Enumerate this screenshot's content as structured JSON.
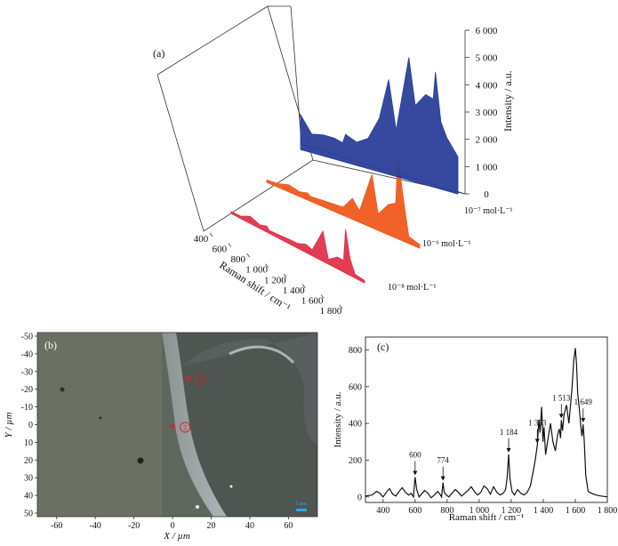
{
  "panels": {
    "a": {
      "label": "(a)"
    },
    "b": {
      "label": "(b)"
    },
    "c": {
      "label": "(c)"
    }
  },
  "colors": {
    "blue": "#2c3f9a",
    "orange": "#ef5a1e",
    "red": "#e0334a",
    "micrograph_bg": "#5f665d",
    "scalebar": "#2aa8e6",
    "marker": "#e02020"
  },
  "chart_data": [
    {
      "panel": "a",
      "type": "line",
      "style": "3d-waterfall",
      "xlabel": "Raman shift / cm⁻¹",
      "zlabel": "Intensity / a.u.",
      "x_ticks": [
        "400",
        "600",
        "800",
        "1 000",
        "1 200",
        "1 400",
        "1 600",
        "1 800"
      ],
      "z_ticks": [
        "0",
        "1 000",
        "2 000",
        "3 000",
        "4 000",
        "5 000",
        "6 000"
      ],
      "xlim": [
        400,
        1800
      ],
      "zlim": [
        0,
        6000
      ],
      "series": [
        {
          "name": "10⁻⁸ mol·L⁻¹",
          "color": "#e0334a",
          "x": [
            400,
            500,
            600,
            700,
            774,
            800,
            900,
            1000,
            1100,
            1184,
            1250,
            1363,
            1420,
            1513,
            1580,
            1600,
            1649,
            1700,
            1800
          ],
          "values": [
            80,
            100,
            300,
            150,
            250,
            120,
            150,
            180,
            200,
            350,
            250,
            1300,
            200,
            500,
            500,
            1900,
            700,
            150,
            100
          ]
        },
        {
          "name": "10⁻⁶ mol·L⁻¹",
          "color": "#ef5a1e",
          "x": [
            400,
            500,
            600,
            700,
            774,
            800,
            900,
            1000,
            1100,
            1184,
            1250,
            1363,
            1420,
            1513,
            1580,
            1600,
            1649,
            1700,
            1800
          ],
          "values": [
            100,
            150,
            300,
            200,
            300,
            200,
            250,
            300,
            350,
            900,
            500,
            2300,
            700,
            1300,
            1500,
            3600,
            1900,
            300,
            150
          ]
        },
        {
          "name": "10⁻⁷ mol·L⁻¹",
          "color": "#2c3f9a",
          "x": [
            400,
            500,
            600,
            700,
            774,
            800,
            900,
            1000,
            1100,
            1184,
            1250,
            1363,
            1420,
            1513,
            1580,
            1600,
            1649,
            1700,
            1800
          ],
          "values": [
            1500,
            800,
            900,
            900,
            800,
            1200,
            1000,
            1300,
            2300,
            4100,
            2000,
            5300,
            3300,
            3900,
            3800,
            5000,
            2900,
            2300,
            1600
          ]
        }
      ]
    },
    {
      "panel": "b",
      "type": "scatter",
      "xlabel": "X / µm",
      "ylabel": "Y / µm",
      "x_ticks": [
        "-60",
        "-40",
        "-20",
        "0",
        "20",
        "40",
        "60"
      ],
      "y_ticks": [
        "-50",
        "-40",
        "-30",
        "-20",
        "-10",
        "0",
        "10",
        "20",
        "30",
        "40",
        "50"
      ],
      "xlim": [
        -70,
        75
      ],
      "ylim": [
        -52,
        52
      ],
      "points": [
        {
          "x": 8,
          "y": -26,
          "label": "1"
        },
        {
          "x": 0,
          "y": 1,
          "label": "2"
        }
      ],
      "scalebar_label": "5 µm"
    },
    {
      "panel": "c",
      "type": "line",
      "xlabel": "Raman shift / cm⁻¹",
      "ylabel": "Intensity / a.u.",
      "xlim": [
        290,
        1800
      ],
      "ylim": [
        -30,
        870
      ],
      "x_ticks": [
        "400",
        "600",
        "800",
        "1 000",
        "1 200",
        "1 400",
        "1 600",
        "1 800"
      ],
      "y_ticks": [
        "0",
        "200",
        "400",
        "600",
        "800"
      ],
      "annotations": [
        {
          "x": 600,
          "y": 108,
          "label": "600"
        },
        {
          "x": 774,
          "y": 78,
          "label": "774"
        },
        {
          "x": 1184,
          "y": 232,
          "label": "1 184"
        },
        {
          "x": 1363,
          "y": 282,
          "label": "1 363"
        },
        {
          "x": 1513,
          "y": 418,
          "label": "1 513"
        },
        {
          "x": 1649,
          "y": 395,
          "label": "1 649"
        }
      ],
      "x": [
        290,
        330,
        360,
        380,
        400,
        420,
        440,
        460,
        480,
        500,
        520,
        540,
        560,
        575,
        590,
        600,
        610,
        625,
        640,
        660,
        680,
        700,
        720,
        740,
        755,
        765,
        774,
        782,
        795,
        810,
        830,
        850,
        870,
        890,
        910,
        930,
        950,
        970,
        990,
        1010,
        1030,
        1050,
        1070,
        1090,
        1110,
        1130,
        1150,
        1165,
        1175,
        1184,
        1192,
        1205,
        1220,
        1240,
        1260,
        1280,
        1300,
        1320,
        1340,
        1350,
        1363,
        1372,
        1380,
        1390,
        1398,
        1405,
        1415,
        1430,
        1445,
        1460,
        1475,
        1490,
        1500,
        1508,
        1513,
        1520,
        1530,
        1545,
        1560,
        1580,
        1590,
        1600,
        1608,
        1615,
        1625,
        1635,
        1642,
        1649,
        1656,
        1665,
        1680,
        1700,
        1730,
        1760,
        1800
      ],
      "values": [
        5,
        10,
        30,
        20,
        0,
        25,
        45,
        15,
        5,
        30,
        50,
        25,
        10,
        20,
        0,
        108,
        40,
        0,
        15,
        35,
        20,
        -5,
        10,
        30,
        15,
        0,
        78,
        25,
        10,
        0,
        20,
        40,
        25,
        5,
        20,
        35,
        55,
        30,
        10,
        25,
        60,
        45,
        15,
        55,
        25,
        10,
        20,
        40,
        110,
        232,
        100,
        30,
        10,
        40,
        20,
        10,
        25,
        60,
        150,
        200,
        282,
        420,
        350,
        490,
        300,
        380,
        230,
        320,
        400,
        300,
        250,
        340,
        370,
        320,
        418,
        360,
        450,
        500,
        400,
        600,
        740,
        810,
        720,
        560,
        480,
        380,
        330,
        395,
        300,
        120,
        30,
        20,
        10,
        5,
        0
      ]
    }
  ]
}
